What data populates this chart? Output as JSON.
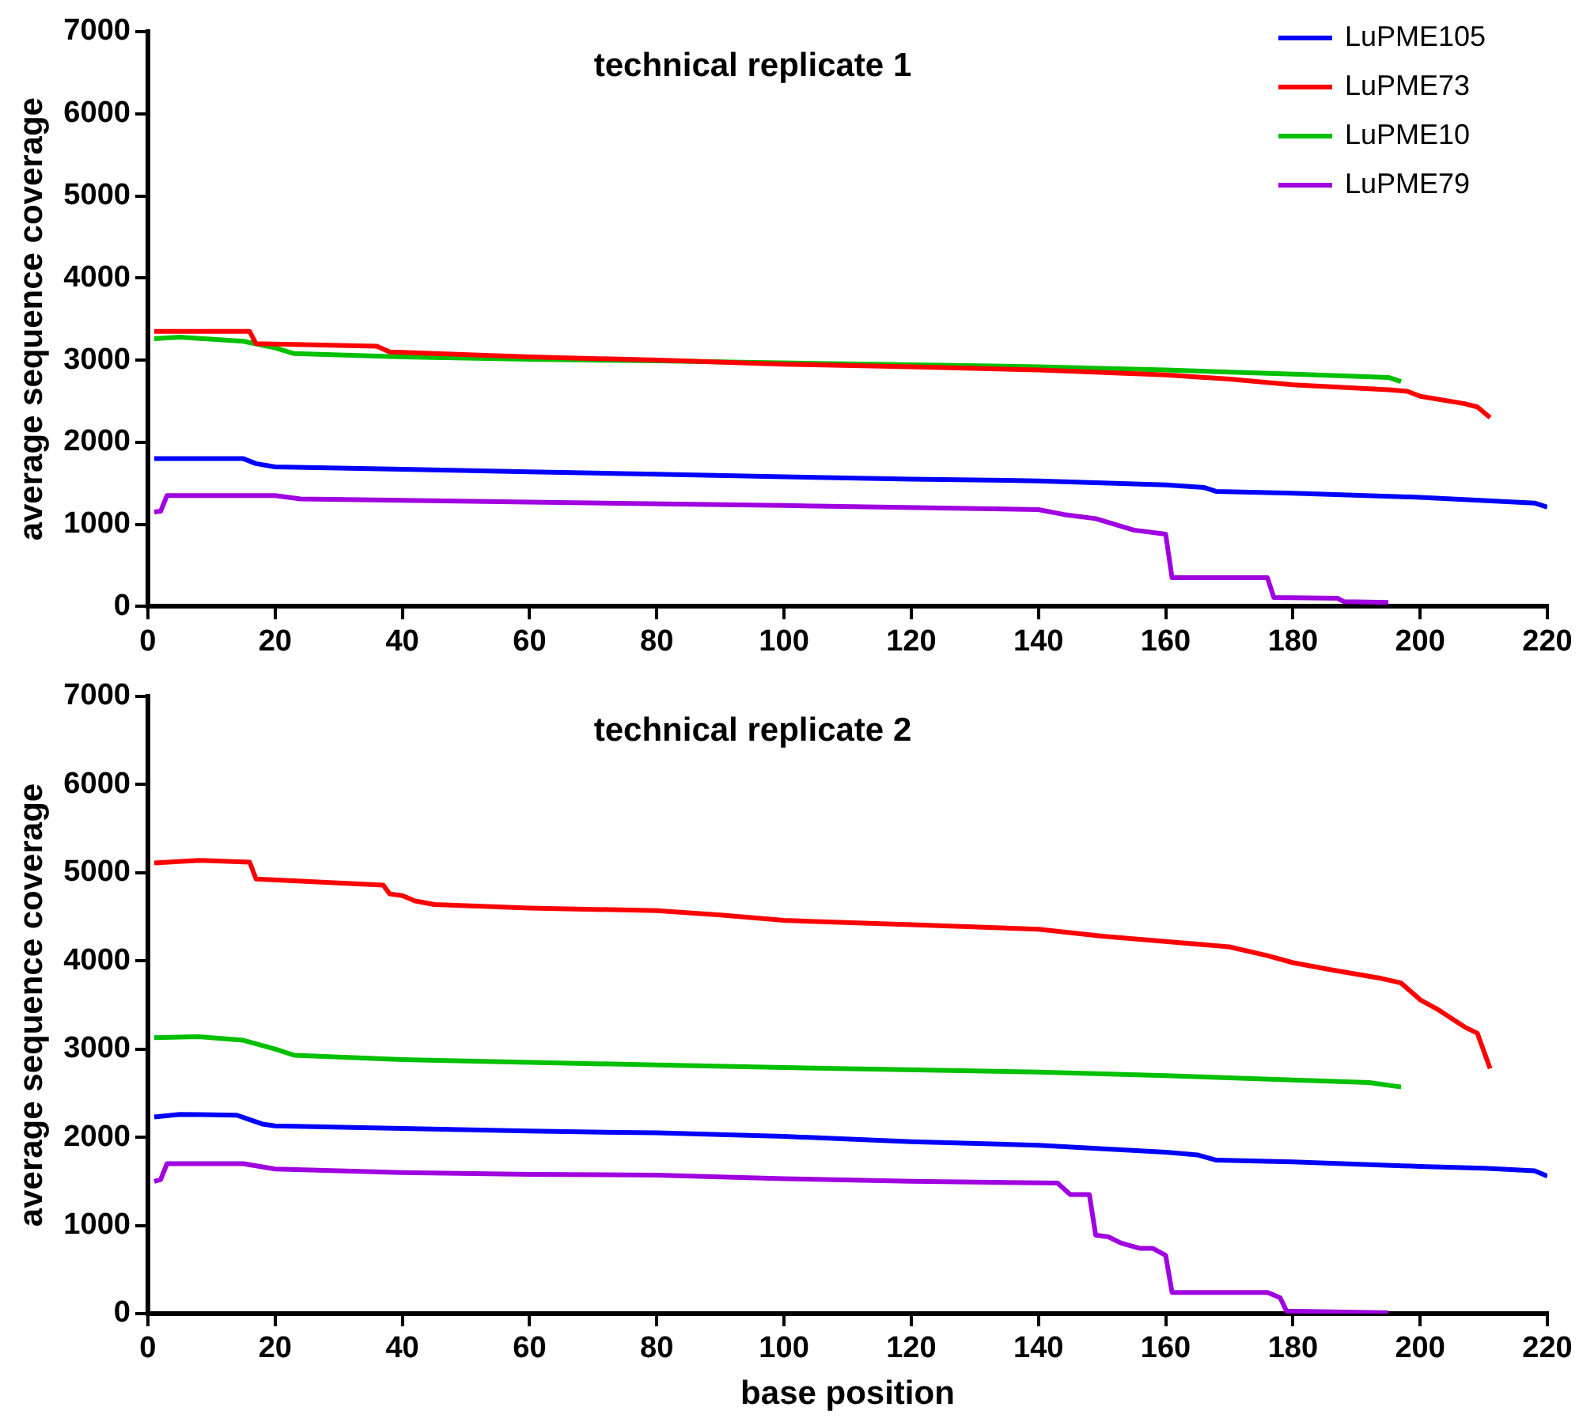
{
  "chart_data": [
    {
      "type": "line",
      "title": "technical replicate 1",
      "ylabel": "average sequence coverage",
      "xlim": [
        0,
        220
      ],
      "xticks": [
        0,
        20,
        40,
        60,
        80,
        100,
        120,
        140,
        160,
        180,
        200,
        220
      ],
      "ylim": [
        0,
        7000
      ],
      "yticks": [
        0,
        1000,
        2000,
        3000,
        4000,
        5000,
        6000,
        7000
      ],
      "grid": false,
      "legend": "top right",
      "marker": "none",
      "line_style": "solid",
      "series": [
        {
          "name": "LuPME105",
          "color": "#0000ff",
          "x": [
            1,
            15,
            17,
            20,
            40,
            60,
            80,
            100,
            120,
            140,
            160,
            166,
            168,
            180,
            200,
            210,
            218,
            220
          ],
          "values": [
            1800,
            1800,
            1740,
            1700,
            1670,
            1640,
            1610,
            1580,
            1550,
            1530,
            1480,
            1450,
            1400,
            1380,
            1330,
            1290,
            1260,
            1210
          ]
        },
        {
          "name": "LuPME73",
          "color": "#ff0000",
          "x": [
            1,
            16,
            17,
            36,
            38,
            60,
            80,
            100,
            120,
            140,
            160,
            170,
            180,
            195,
            198,
            200,
            207,
            209,
            211
          ],
          "values": [
            3350,
            3350,
            3200,
            3170,
            3100,
            3040,
            3000,
            2950,
            2920,
            2880,
            2820,
            2770,
            2700,
            2640,
            2620,
            2560,
            2470,
            2430,
            2300
          ]
        },
        {
          "name": "LuPME10",
          "color": "#00c000",
          "x": [
            1,
            5,
            15,
            20,
            23,
            40,
            60,
            80,
            140,
            160,
            180,
            195,
            197
          ],
          "values": [
            3260,
            3280,
            3230,
            3150,
            3080,
            3040,
            3010,
            2990,
            2920,
            2880,
            2830,
            2790,
            2740
          ]
        },
        {
          "name": "LuPME79",
          "color": "#a000e0",
          "x": [
            1,
            2,
            3,
            20,
            24,
            60,
            100,
            140,
            144,
            149,
            152,
            155,
            160,
            161,
            176,
            177,
            187,
            188,
            195
          ],
          "values": [
            1150,
            1160,
            1350,
            1350,
            1310,
            1270,
            1230,
            1180,
            1120,
            1070,
            1000,
            930,
            880,
            350,
            350,
            110,
            100,
            60,
            50
          ]
        }
      ]
    },
    {
      "type": "line",
      "title": "technical replicate 2",
      "xlabel": "base position",
      "ylabel": "average sequence coverage",
      "xlim": [
        0,
        220
      ],
      "xticks": [
        0,
        20,
        40,
        60,
        80,
        100,
        120,
        140,
        160,
        180,
        200,
        220
      ],
      "ylim": [
        0,
        7000
      ],
      "yticks": [
        0,
        1000,
        2000,
        3000,
        4000,
        5000,
        6000,
        7000
      ],
      "grid": false,
      "marker": "none",
      "line_style": "solid",
      "series": [
        {
          "color": "#0000ff",
          "x": [
            1,
            5,
            14,
            16,
            18,
            20,
            40,
            60,
            80,
            100,
            120,
            140,
            160,
            165,
            168,
            180,
            200,
            210,
            218,
            220
          ],
          "values": [
            2230,
            2260,
            2250,
            2200,
            2150,
            2130,
            2100,
            2070,
            2050,
            2010,
            1950,
            1910,
            1830,
            1800,
            1740,
            1720,
            1670,
            1650,
            1620,
            1560
          ]
        },
        {
          "color": "#ff0000",
          "x": [
            1,
            8,
            16,
            17,
            37,
            38,
            40,
            42,
            45,
            60,
            80,
            90,
            100,
            120,
            140,
            150,
            160,
            170,
            176,
            180,
            186,
            194,
            197,
            200,
            203,
            207,
            209,
            211
          ],
          "values": [
            5110,
            5140,
            5120,
            4930,
            4860,
            4760,
            4740,
            4680,
            4640,
            4600,
            4570,
            4520,
            4460,
            4410,
            4360,
            4280,
            4220,
            4160,
            4060,
            3980,
            3900,
            3800,
            3750,
            3560,
            3440,
            3250,
            3180,
            2780
          ]
        },
        {
          "color": "#00c000",
          "x": [
            1,
            8,
            15,
            20,
            23,
            40,
            60,
            80,
            100,
            140,
            160,
            180,
            192,
            197
          ],
          "values": [
            3130,
            3140,
            3100,
            3000,
            2930,
            2880,
            2850,
            2820,
            2790,
            2740,
            2700,
            2650,
            2620,
            2570
          ]
        },
        {
          "color": "#a000e0",
          "x": [
            1,
            2,
            3,
            15,
            20,
            40,
            60,
            80,
            100,
            120,
            143,
            145,
            148,
            149,
            151,
            153,
            156,
            158,
            160,
            161,
            176,
            177,
            178,
            179,
            195
          ],
          "values": [
            1500,
            1520,
            1700,
            1700,
            1640,
            1600,
            1580,
            1570,
            1530,
            1500,
            1480,
            1350,
            1350,
            890,
            870,
            800,
            740,
            740,
            660,
            240,
            240,
            210,
            180,
            30,
            10
          ]
        }
      ]
    }
  ]
}
